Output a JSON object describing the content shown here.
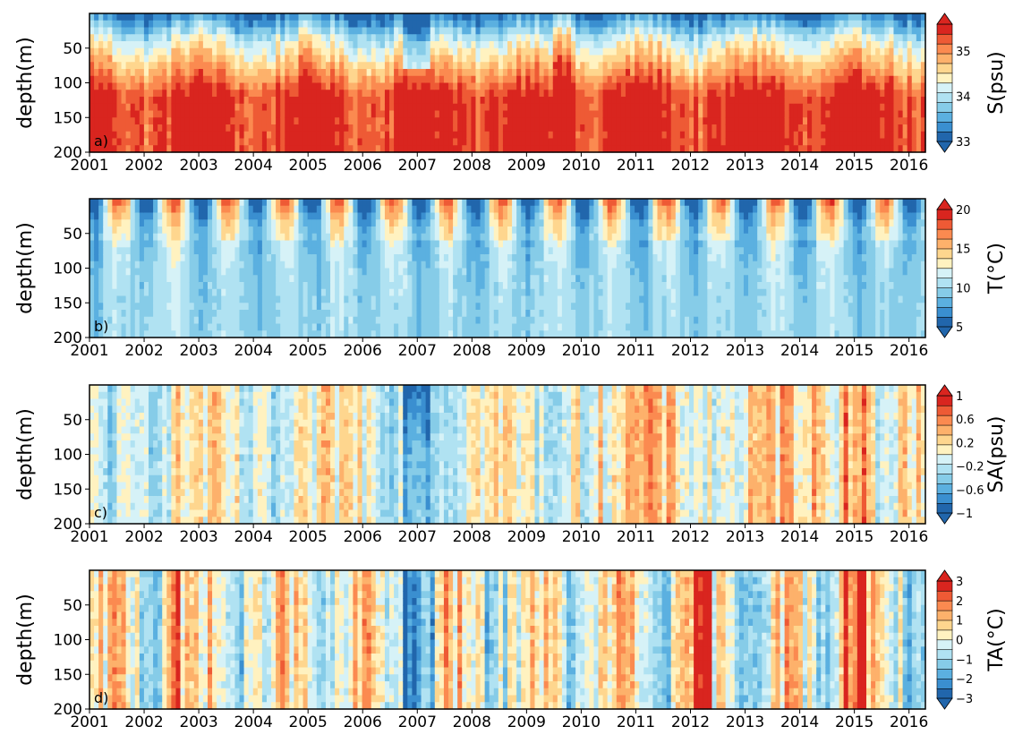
{
  "colors": {
    "palette": [
      "#2166ac",
      "#3a8fd0",
      "#5bb0e0",
      "#86cce8",
      "#b0e2f2",
      "#d6f2f7",
      "#fff2c0",
      "#fed68e",
      "#fdb16b",
      "#fb8a50",
      "#ee5a35",
      "#d9251f"
    ],
    "frame": "#000000"
  },
  "chart_data": [
    {
      "type": "heatmap",
      "panel_label": "a)",
      "ylabel": "depth(m)",
      "colorbar_label": "S(psu)",
      "colorbar_ticks": [
        {
          "value": 35,
          "label": "35"
        },
        {
          "value": 34,
          "label": "34"
        },
        {
          "value": 33,
          "label": "33"
        }
      ],
      "clim": [
        33,
        35.6
      ],
      "xlim": [
        2001,
        2016.3
      ],
      "ylim": [
        0,
        200
      ],
      "x_ticks": [
        "2001",
        "2002",
        "2003",
        "2004",
        "2005",
        "2006",
        "2007",
        "2008",
        "2009",
        "2010",
        "2011",
        "2012",
        "2013",
        "2014",
        "2015",
        "2016"
      ],
      "y_ticks": [
        "50",
        "100",
        "150",
        "200"
      ],
      "field": "salinity"
    },
    {
      "type": "heatmap",
      "panel_label": "b)",
      "ylabel": "depth(m)",
      "colorbar_label": "T(°C)",
      "colorbar_ticks": [
        {
          "value": 20,
          "label": "20"
        },
        {
          "value": 15,
          "label": "15"
        },
        {
          "value": 10,
          "label": "10"
        },
        {
          "value": 5,
          "label": "5"
        }
      ],
      "clim": [
        5,
        20
      ],
      "xlim": [
        2001,
        2016.3
      ],
      "ylim": [
        0,
        200
      ],
      "x_ticks": [
        "2001",
        "2002",
        "2003",
        "2004",
        "2005",
        "2006",
        "2007",
        "2008",
        "2009",
        "2010",
        "2011",
        "2012",
        "2013",
        "2014",
        "2015",
        "2016"
      ],
      "y_ticks": [
        "50",
        "100",
        "150",
        "200"
      ],
      "field": "temperature"
    },
    {
      "type": "heatmap",
      "panel_label": "c)",
      "ylabel": "depth(m)",
      "colorbar_label": "SA(psu)",
      "colorbar_ticks": [
        {
          "value": 1,
          "label": "1"
        },
        {
          "value": 0.6,
          "label": "0.6"
        },
        {
          "value": 0.2,
          "label": "0.2"
        },
        {
          "value": -0.2,
          "label": "−0.2"
        },
        {
          "value": -0.6,
          "label": "−0.6"
        },
        {
          "value": -1,
          "label": "−1"
        }
      ],
      "clim": [
        -1,
        1
      ],
      "xlim": [
        2001,
        2016.3
      ],
      "ylim": [
        0,
        200
      ],
      "x_ticks": [
        "2001",
        "2002",
        "2003",
        "2004",
        "2005",
        "2006",
        "2007",
        "2008",
        "2009",
        "2010",
        "2011",
        "2012",
        "2013",
        "2014",
        "2015",
        "2016"
      ],
      "y_ticks": [
        "50",
        "100",
        "150",
        "200"
      ],
      "field": "salinity_anomaly"
    },
    {
      "type": "heatmap",
      "panel_label": "d)",
      "ylabel": "depth(m)",
      "colorbar_label": "TA(°C)",
      "colorbar_ticks": [
        {
          "value": 3,
          "label": "3"
        },
        {
          "value": 2,
          "label": "2"
        },
        {
          "value": 1,
          "label": "1"
        },
        {
          "value": 0,
          "label": "0"
        },
        {
          "value": -1,
          "label": "−1"
        },
        {
          "value": -2,
          "label": "−2"
        },
        {
          "value": -3,
          "label": "−3"
        }
      ],
      "clim": [
        -3,
        3
      ],
      "xlim": [
        2001,
        2016.3
      ],
      "ylim": [
        0,
        200
      ],
      "x_ticks": [
        "2001",
        "2002",
        "2003",
        "2004",
        "2005",
        "2006",
        "2007",
        "2008",
        "2009",
        "2010",
        "2011",
        "2012",
        "2013",
        "2014",
        "2015",
        "2016"
      ],
      "y_ticks": [
        "50",
        "100",
        "150",
        "200"
      ],
      "field": "temperature_anomaly"
    }
  ]
}
